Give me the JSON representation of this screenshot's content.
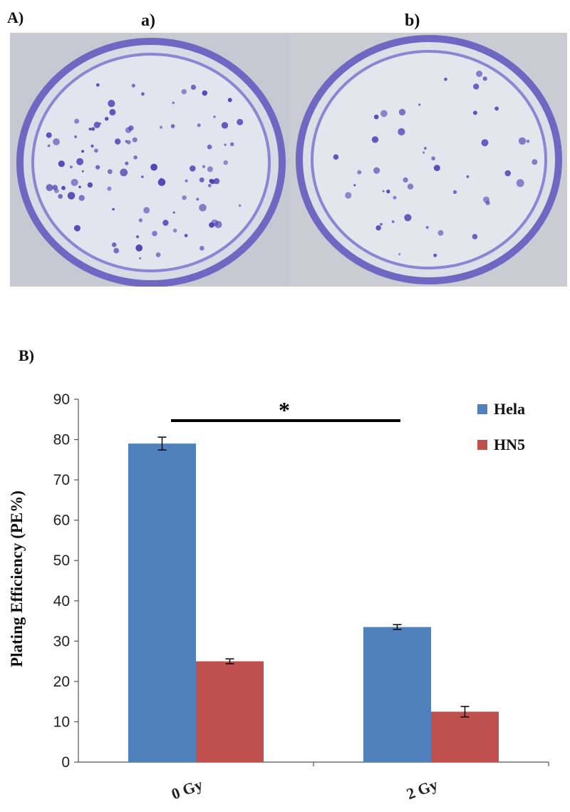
{
  "panel_a": {
    "label": "A)",
    "images": [
      {
        "label": "a)",
        "description_icon": "petri-dish-colonies-icon",
        "colony_color": "#4b3fb4",
        "dish_color": "#7f7ccf",
        "background_color": "#c9cbd4"
      },
      {
        "label": "b)",
        "description_icon": "petri-dish-colonies-icon",
        "colony_color": "#4b3fb4",
        "dish_color": "#7f7ccf",
        "background_color": "#c9cbd4"
      }
    ]
  },
  "panel_b": {
    "label": "B)"
  },
  "chart_data": {
    "type": "bar",
    "title": "",
    "xlabel": "",
    "ylabel": "Plating Efficiency (PE%)",
    "categories": [
      "0 Gy",
      "2 Gy"
    ],
    "series": [
      {
        "name": "Hela",
        "values": [
          79,
          33.5
        ],
        "errors": [
          1.6,
          0.6
        ],
        "color": "#4f81bd"
      },
      {
        "name": "HN5",
        "values": [
          25,
          12.5
        ],
        "errors": [
          0.6,
          1.3
        ],
        "color": "#c0504d"
      }
    ],
    "ylim": [
      0,
      90
    ],
    "yticks": [
      0,
      10,
      20,
      30,
      40,
      50,
      60,
      70,
      80,
      90
    ],
    "grid": false,
    "legend_position": "top-right",
    "significance": {
      "symbol": "*"
    }
  }
}
